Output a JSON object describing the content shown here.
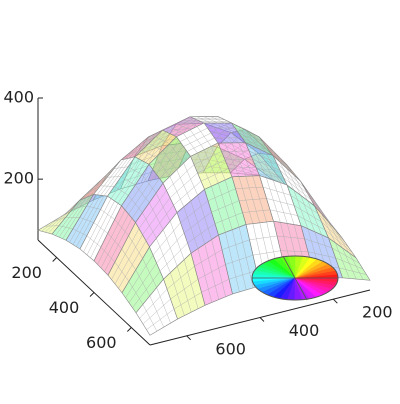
{
  "chart_data": {
    "type": "surface",
    "x": [
      100,
      175,
      250,
      325,
      400,
      475,
      550,
      625,
      700
    ],
    "y": [
      100,
      175,
      250,
      325,
      400,
      475,
      550,
      625,
      700
    ],
    "z": [
      [
        74,
        97,
        114,
        125,
        128,
        125,
        114,
        97,
        74
      ],
      [
        97,
        163,
        210,
        238,
        247,
        238,
        210,
        163,
        97
      ],
      [
        114,
        210,
        278,
        318,
        332,
        318,
        278,
        210,
        114
      ],
      [
        125,
        238,
        318,
        367,
        383,
        367,
        318,
        238,
        125
      ],
      [
        128,
        247,
        332,
        383,
        400,
        383,
        332,
        247,
        128
      ],
      [
        125,
        238,
        318,
        367,
        383,
        367,
        318,
        238,
        125
      ],
      [
        114,
        210,
        278,
        318,
        332,
        318,
        278,
        210,
        114
      ],
      [
        97,
        163,
        210,
        238,
        247,
        238,
        210,
        163,
        97
      ],
      [
        74,
        97,
        114,
        125,
        128,
        125,
        114,
        97,
        74
      ]
    ],
    "xlim": [
      100,
      700
    ],
    "ylim": [
      100,
      700
    ],
    "zlim": [
      50,
      400
    ],
    "xticks": [
      200,
      400,
      600
    ],
    "yticks": [
      200,
      400,
      600
    ],
    "zticks": [
      200,
      400
    ]
  }
}
